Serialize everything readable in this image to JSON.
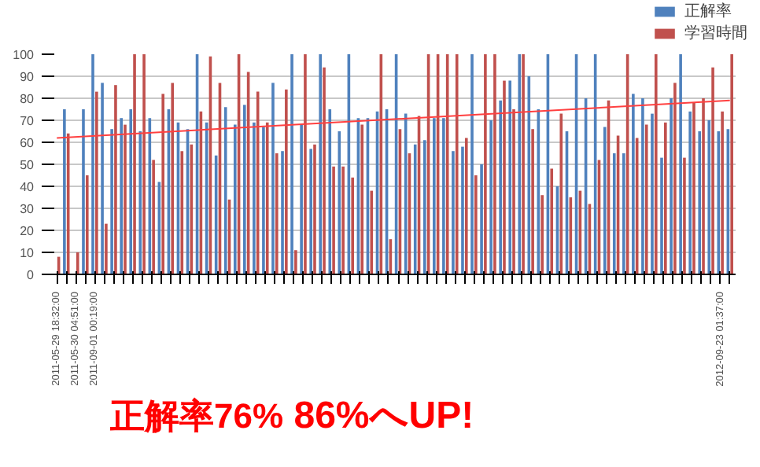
{
  "chart_data": {
    "type": "bar",
    "categories": [
      "2011-05-29 18:32:00",
      null,
      "2011-05-30 04:51:00",
      null,
      "2011-09-01 00:19:00",
      null,
      null,
      null,
      null,
      null,
      null,
      null,
      null,
      null,
      null,
      null,
      null,
      null,
      null,
      null,
      null,
      null,
      null,
      null,
      null,
      null,
      null,
      null,
      null,
      null,
      null,
      null,
      null,
      null,
      null,
      null,
      null,
      null,
      null,
      null,
      null,
      null,
      null,
      null,
      null,
      null,
      null,
      null,
      null,
      null,
      null,
      null,
      null,
      null,
      null,
      null,
      null,
      null,
      null,
      null,
      null,
      null,
      null,
      null,
      null,
      null,
      null,
      null,
      null,
      null,
      "2012-09-23 01:37:00",
      null
    ],
    "series": [
      {
        "name": "正解率",
        "color": "#4f81bd",
        "values": [
          0,
          75,
          0,
          75,
          100,
          87,
          66,
          71,
          75,
          65,
          71,
          42,
          75,
          69,
          66,
          100,
          69,
          54,
          76,
          68,
          77,
          69,
          67,
          87,
          56,
          100,
          68,
          57,
          100,
          75,
          65,
          100,
          71,
          71,
          74,
          75,
          100,
          73,
          59,
          61,
          71,
          71,
          56,
          58,
          100,
          50,
          70,
          79,
          88,
          100,
          90,
          75,
          100,
          40,
          65,
          100,
          80,
          100,
          67,
          55,
          55,
          82,
          80,
          73,
          53,
          80,
          100,
          74,
          65,
          70,
          65,
          66
        ]
      },
      {
        "name": "学習時間",
        "color": "#c0504d",
        "values": [
          8,
          64,
          10,
          45,
          83,
          23,
          86,
          68,
          100,
          100,
          52,
          82,
          87,
          56,
          59,
          74,
          99,
          87,
          34,
          100,
          92,
          83,
          69,
          55,
          84,
          11,
          100,
          59,
          94,
          49,
          49,
          44,
          68,
          38,
          100,
          16,
          66,
          55,
          72,
          100,
          100,
          100,
          100,
          62,
          45,
          100,
          100,
          88,
          75,
          100,
          66,
          36,
          48,
          73,
          35,
          38,
          32,
          52,
          79,
          63,
          100,
          62,
          68,
          100,
          69,
          87,
          53,
          78,
          80,
          94,
          74,
          100
        ]
      },
      {
        "type": "line",
        "color": "#ff4040",
        "values": [
          62,
          null,
          null,
          null,
          null,
          null,
          null,
          null,
          null,
          null,
          null,
          null,
          null,
          null,
          null,
          null,
          null,
          null,
          null,
          null,
          null,
          null,
          null,
          null,
          null,
          null,
          null,
          null,
          null,
          null,
          null,
          null,
          null,
          null,
          null,
          null,
          null,
          null,
          null,
          null,
          null,
          null,
          null,
          null,
          null,
          null,
          null,
          null,
          null,
          null,
          null,
          null,
          null,
          null,
          null,
          null,
          null,
          null,
          null,
          null,
          null,
          null,
          null,
          null,
          null,
          null,
          null,
          null,
          null,
          null,
          null,
          79
        ]
      }
    ],
    "ylim": [
      0,
      100
    ],
    "yticks": [
      0,
      10,
      20,
      30,
      40,
      50,
      60,
      70,
      80,
      90,
      100
    ],
    "grid": "y",
    "legend": "top right",
    "annotations": [
      "正解率76%",
      "86%へUP!"
    ]
  }
}
